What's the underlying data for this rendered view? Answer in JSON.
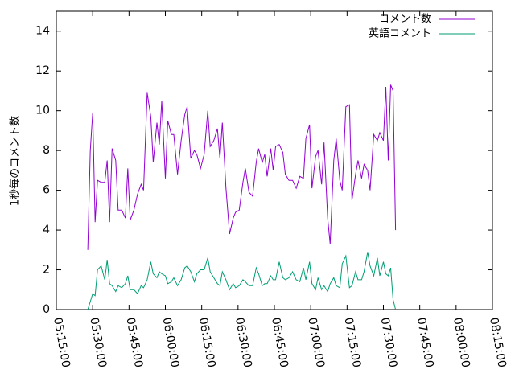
{
  "chart_data": {
    "type": "line",
    "ylabel": "1秒毎のコメント数",
    "xlabel": "",
    "xlim": [
      "05:15:00",
      "08:15:00"
    ],
    "ylim": [
      0,
      15
    ],
    "x_ticks": [
      "05:15:00",
      "05:30:00",
      "05:45:00",
      "06:00:00",
      "06:15:00",
      "06:30:00",
      "06:45:00",
      "07:00:00",
      "07:15:00",
      "07:30:00",
      "07:45:00",
      "08:00:00",
      "08:15:00"
    ],
    "y_ticks": [
      0,
      2,
      4,
      6,
      8,
      10,
      12,
      14
    ],
    "grid": false,
    "legend_position": "top-right",
    "series": [
      {
        "name": "コメント数",
        "color": "#9400d3",
        "points": [
          [
            "05:28:00",
            3.0
          ],
          [
            "05:29:00",
            8.0
          ],
          [
            "05:30:00",
            9.9
          ],
          [
            "05:31:00",
            4.4
          ],
          [
            "05:32:00",
            6.5
          ],
          [
            "05:33:30",
            6.4
          ],
          [
            "05:35:00",
            6.4
          ],
          [
            "05:36:00",
            7.5
          ],
          [
            "05:37:00",
            4.4
          ],
          [
            "05:38:00",
            8.1
          ],
          [
            "05:39:30",
            7.5
          ],
          [
            "05:40:30",
            5.0
          ],
          [
            "05:42:00",
            5.0
          ],
          [
            "05:43:30",
            4.6
          ],
          [
            "05:44:30",
            7.1
          ],
          [
            "05:45:30",
            4.5
          ],
          [
            "05:47:00",
            5.0
          ],
          [
            "05:48:30",
            5.8
          ],
          [
            "05:50:00",
            6.3
          ],
          [
            "05:51:00",
            6.0
          ],
          [
            "05:52:30",
            10.9
          ],
          [
            "05:54:00",
            9.7
          ],
          [
            "05:55:00",
            7.4
          ],
          [
            "05:56:30",
            9.4
          ],
          [
            "05:57:30",
            8.3
          ],
          [
            "05:58:30",
            10.5
          ],
          [
            "06:00:00",
            6.6
          ],
          [
            "06:01:00",
            9.5
          ],
          [
            "06:02:30",
            8.8
          ],
          [
            "06:03:30",
            8.8
          ],
          [
            "06:05:00",
            6.8
          ],
          [
            "06:06:30",
            8.5
          ],
          [
            "06:08:00",
            9.8
          ],
          [
            "06:09:00",
            10.2
          ],
          [
            "06:10:30",
            7.6
          ],
          [
            "06:12:00",
            8.0
          ],
          [
            "06:13:00",
            7.8
          ],
          [
            "06:14:30",
            7.1
          ],
          [
            "06:16:00",
            7.8
          ],
          [
            "06:17:30",
            10.0
          ],
          [
            "06:18:30",
            8.2
          ],
          [
            "06:20:00",
            8.5
          ],
          [
            "06:21:30",
            9.1
          ],
          [
            "06:22:30",
            7.6
          ],
          [
            "06:23:30",
            9.4
          ],
          [
            "06:25:00",
            6.1
          ],
          [
            "06:26:30",
            3.8
          ],
          [
            "06:28:00",
            4.6
          ],
          [
            "06:29:00",
            4.9
          ],
          [
            "06:30:30",
            5.0
          ],
          [
            "06:32:00",
            6.4
          ],
          [
            "06:33:00",
            7.1
          ],
          [
            "06:34:30",
            5.9
          ],
          [
            "06:36:00",
            5.7
          ],
          [
            "06:37:30",
            7.4
          ],
          [
            "06:38:30",
            8.1
          ],
          [
            "06:40:00",
            7.4
          ],
          [
            "06:41:00",
            7.8
          ],
          [
            "06:42:00",
            6.7
          ],
          [
            "06:43:30",
            8.1
          ],
          [
            "06:44:30",
            7.0
          ],
          [
            "06:45:30",
            8.2
          ],
          [
            "06:47:00",
            8.3
          ],
          [
            "06:48:30",
            7.9
          ],
          [
            "06:49:30",
            6.8
          ],
          [
            "06:51:00",
            6.5
          ],
          [
            "06:52:30",
            6.5
          ],
          [
            "06:54:00",
            6.1
          ],
          [
            "06:55:30",
            6.7
          ],
          [
            "06:57:00",
            6.6
          ],
          [
            "06:58:00",
            8.6
          ],
          [
            "06:59:30",
            9.3
          ],
          [
            "07:00:30",
            6.1
          ],
          [
            "07:02:00",
            7.7
          ],
          [
            "07:03:00",
            8.0
          ],
          [
            "07:04:30",
            6.3
          ],
          [
            "07:05:30",
            8.4
          ],
          [
            "07:07:00",
            4.6
          ],
          [
            "07:08:00",
            3.3
          ],
          [
            "07:09:30",
            7.5
          ],
          [
            "07:10:30",
            8.6
          ],
          [
            "07:12:00",
            6.5
          ],
          [
            "07:13:00",
            6.0
          ],
          [
            "07:14:30",
            10.2
          ],
          [
            "07:16:00",
            10.3
          ],
          [
            "07:17:00",
            5.5
          ],
          [
            "07:18:30",
            6.8
          ],
          [
            "07:19:30",
            7.5
          ],
          [
            "07:21:00",
            6.6
          ],
          [
            "07:22:00",
            7.3
          ],
          [
            "07:23:30",
            7.0
          ],
          [
            "07:24:30",
            6.0
          ],
          [
            "07:26:00",
            8.8
          ],
          [
            "07:27:30",
            8.5
          ],
          [
            "07:28:30",
            8.9
          ],
          [
            "07:30:00",
            8.5
          ],
          [
            "07:31:00",
            11.2
          ],
          [
            "07:32:00",
            7.5
          ],
          [
            "07:33:00",
            11.3
          ],
          [
            "07:34:00",
            11.0
          ],
          [
            "07:35:00",
            4.0
          ]
        ]
      },
      {
        "name": "英語コメント",
        "color": "#009e73",
        "points": [
          [
            "05:28:00",
            0.0
          ],
          [
            "05:29:00",
            0.4
          ],
          [
            "05:30:00",
            0.8
          ],
          [
            "05:31:00",
            0.7
          ],
          [
            "05:32:00",
            2.0
          ],
          [
            "05:33:30",
            2.2
          ],
          [
            "05:35:00",
            1.5
          ],
          [
            "05:36:00",
            2.5
          ],
          [
            "05:37:00",
            1.3
          ],
          [
            "05:38:00",
            1.2
          ],
          [
            "05:39:30",
            0.9
          ],
          [
            "05:40:30",
            1.2
          ],
          [
            "05:42:00",
            1.1
          ],
          [
            "05:43:30",
            1.3
          ],
          [
            "05:44:30",
            1.7
          ],
          [
            "05:45:30",
            1.0
          ],
          [
            "05:47:00",
            1.0
          ],
          [
            "05:48:30",
            0.8
          ],
          [
            "05:50:00",
            1.2
          ],
          [
            "05:51:00",
            1.1
          ],
          [
            "05:52:30",
            1.5
          ],
          [
            "05:54:00",
            2.4
          ],
          [
            "05:55:00",
            1.8
          ],
          [
            "05:56:30",
            1.6
          ],
          [
            "05:57:30",
            1.9
          ],
          [
            "05:58:30",
            1.8
          ],
          [
            "06:00:00",
            1.7
          ],
          [
            "06:01:00",
            1.3
          ],
          [
            "06:02:30",
            1.4
          ],
          [
            "06:03:30",
            1.6
          ],
          [
            "06:05:00",
            1.2
          ],
          [
            "06:06:30",
            1.5
          ],
          [
            "06:08:00",
            2.1
          ],
          [
            "06:09:00",
            2.2
          ],
          [
            "06:10:30",
            1.9
          ],
          [
            "06:12:00",
            1.4
          ],
          [
            "06:13:00",
            1.8
          ],
          [
            "06:14:30",
            2.0
          ],
          [
            "06:16:00",
            2.0
          ],
          [
            "06:17:30",
            2.6
          ],
          [
            "06:18:30",
            1.9
          ],
          [
            "06:20:00",
            1.6
          ],
          [
            "06:21:30",
            1.3
          ],
          [
            "06:22:30",
            1.2
          ],
          [
            "06:23:30",
            1.9
          ],
          [
            "06:25:00",
            1.5
          ],
          [
            "06:26:30",
            1.0
          ],
          [
            "06:28:00",
            1.3
          ],
          [
            "06:29:00",
            1.1
          ],
          [
            "06:30:30",
            1.2
          ],
          [
            "06:32:00",
            1.5
          ],
          [
            "06:33:00",
            1.4
          ],
          [
            "06:34:30",
            1.2
          ],
          [
            "06:36:00",
            1.2
          ],
          [
            "06:37:30",
            2.1
          ],
          [
            "06:38:30",
            1.8
          ],
          [
            "06:40:00",
            1.2
          ],
          [
            "06:41:00",
            1.3
          ],
          [
            "06:42:00",
            1.3
          ],
          [
            "06:43:30",
            1.7
          ],
          [
            "06:44:30",
            1.5
          ],
          [
            "06:45:30",
            1.5
          ],
          [
            "06:47:00",
            2.4
          ],
          [
            "06:48:30",
            1.6
          ],
          [
            "06:49:30",
            1.5
          ],
          [
            "06:51:00",
            1.6
          ],
          [
            "06:52:30",
            1.9
          ],
          [
            "06:54:00",
            1.5
          ],
          [
            "06:55:30",
            1.4
          ],
          [
            "06:57:00",
            2.1
          ],
          [
            "06:58:00",
            1.5
          ],
          [
            "06:59:30",
            2.4
          ],
          [
            "07:00:30",
            1.3
          ],
          [
            "07:02:00",
            1.0
          ],
          [
            "07:03:00",
            1.6
          ],
          [
            "07:04:30",
            1.0
          ],
          [
            "07:05:30",
            1.2
          ],
          [
            "07:07:00",
            0.9
          ],
          [
            "07:08:00",
            1.3
          ],
          [
            "07:09:30",
            1.6
          ],
          [
            "07:10:30",
            1.2
          ],
          [
            "07:12:00",
            1.1
          ],
          [
            "07:13:00",
            2.3
          ],
          [
            "07:14:30",
            2.7
          ],
          [
            "07:16:00",
            1.1
          ],
          [
            "07:17:00",
            1.2
          ],
          [
            "07:18:30",
            1.9
          ],
          [
            "07:19:30",
            1.5
          ],
          [
            "07:21:00",
            1.5
          ],
          [
            "07:22:00",
            1.9
          ],
          [
            "07:23:30",
            2.9
          ],
          [
            "07:24:30",
            2.2
          ],
          [
            "07:26:00",
            1.7
          ],
          [
            "07:27:30",
            2.6
          ],
          [
            "07:28:30",
            1.7
          ],
          [
            "07:30:00",
            2.4
          ],
          [
            "07:31:00",
            1.8
          ],
          [
            "07:32:00",
            1.7
          ],
          [
            "07:33:00",
            2.1
          ],
          [
            "07:34:00",
            0.5
          ],
          [
            "07:35:00",
            0.0
          ]
        ]
      }
    ]
  }
}
